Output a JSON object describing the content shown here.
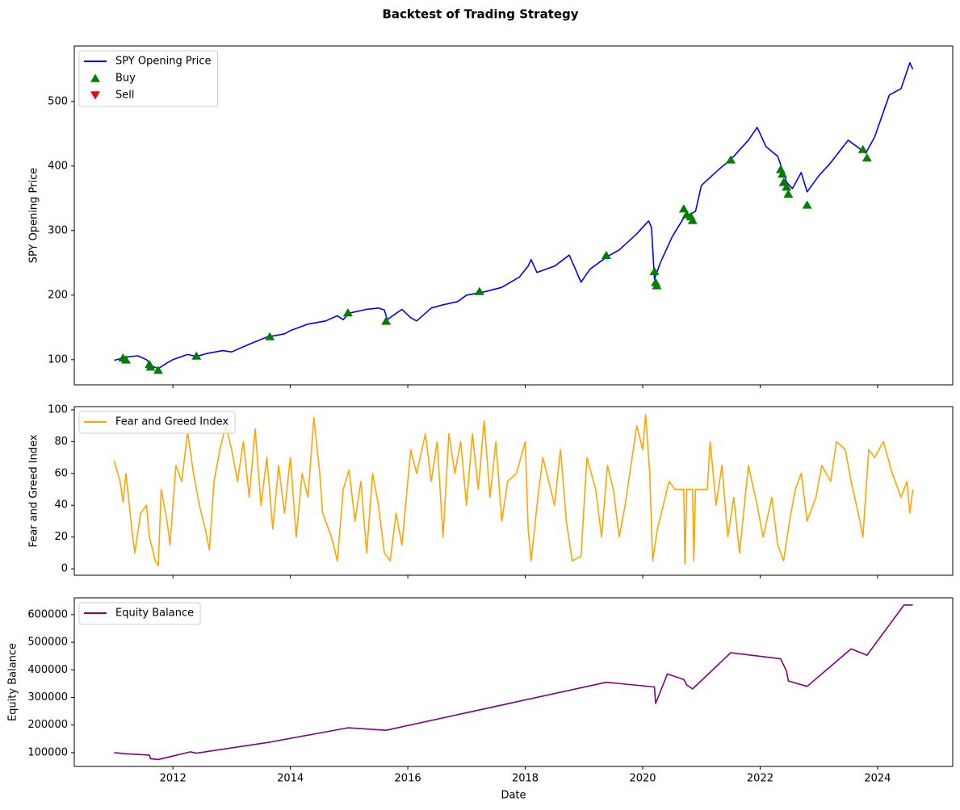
{
  "title": "Backtest of Trading Strategy",
  "chart_data": [
    {
      "type": "line",
      "ylabel": "SPY Opening Price",
      "xlim": [
        2010.32,
        2025.28
      ],
      "xticks": [
        2012,
        2014,
        2016,
        2018,
        2020,
        2022,
        2024
      ],
      "show_xticklabels": false,
      "ylim": [
        61,
        586
      ],
      "yticks": [
        100,
        200,
        300,
        400,
        500
      ],
      "legend": "upper left",
      "grid": false,
      "series": [
        {
          "name": "SPY Opening Price",
          "type": "line",
          "color": "#0000ff",
          "x": [
            2011.0,
            2011.2,
            2011.4,
            2011.55,
            2011.65,
            2011.75,
            2011.9,
            2012.0,
            2012.25,
            2012.4,
            2012.6,
            2012.85,
            2013.0,
            2013.3,
            2013.6,
            2013.9,
            2014.0,
            2014.3,
            2014.6,
            2014.8,
            2014.9,
            2015.0,
            2015.3,
            2015.5,
            2015.6,
            2015.65,
            2015.9,
            2016.05,
            2016.15,
            2016.4,
            2016.6,
            2016.85,
            2017.0,
            2017.3,
            2017.6,
            2017.9,
            2018.05,
            2018.1,
            2018.2,
            2018.5,
            2018.75,
            2018.95,
            2019.1,
            2019.4,
            2019.6,
            2019.9,
            2020.1,
            2020.15,
            2020.2,
            2020.3,
            2020.5,
            2020.7,
            2020.9,
            2021.0,
            2021.3,
            2021.5,
            2021.8,
            2021.95,
            2022.1,
            2022.3,
            2022.45,
            2022.55,
            2022.7,
            2022.8,
            2023.0,
            2023.2,
            2023.5,
            2023.8,
            2023.95,
            2024.2,
            2024.4,
            2024.55,
            2024.6
          ],
          "values": [
            99,
            104,
            106,
            100,
            90,
            86,
            95,
            100,
            108,
            105,
            110,
            114,
            112,
            124,
            135,
            140,
            145,
            155,
            160,
            168,
            162,
            172,
            178,
            180,
            177,
            162,
            178,
            165,
            160,
            180,
            185,
            190,
            200,
            205,
            212,
            228,
            245,
            255,
            235,
            245,
            262,
            220,
            240,
            260,
            270,
            295,
            315,
            305,
            225,
            250,
            290,
            320,
            330,
            370,
            395,
            410,
            440,
            460,
            430,
            415,
            375,
            365,
            390,
            360,
            385,
            405,
            440,
            420,
            445,
            510,
            520,
            560,
            550
          ]
        },
        {
          "name": "Buy",
          "type": "scatter",
          "marker": "^",
          "color": "#008000",
          "x": [
            2011.15,
            2011.2,
            2011.6,
            2011.62,
            2011.75,
            2012.4,
            2013.65,
            2014.98,
            2015.63,
            2017.22,
            2019.38,
            2020.2,
            2020.22,
            2020.24,
            2020.7,
            2020.75,
            2020.82,
            2020.85,
            2021.5,
            2022.35,
            2022.38,
            2022.4,
            2022.45,
            2022.48,
            2022.8,
            2023.75,
            2023.82
          ],
          "values": [
            103,
            100,
            93,
            89,
            84,
            106,
            136,
            173,
            160,
            206,
            262,
            237,
            220,
            215,
            334,
            325,
            322,
            316,
            410,
            395,
            388,
            375,
            368,
            357,
            340,
            426,
            413
          ]
        },
        {
          "name": "Sell",
          "type": "scatter",
          "marker": "v",
          "color": "#ff0000",
          "x": [],
          "values": []
        }
      ]
    },
    {
      "type": "line",
      "ylabel": "Fear and Greed Index",
      "xlim": [
        2010.32,
        2025.28
      ],
      "xticks": [
        2012,
        2014,
        2016,
        2018,
        2020,
        2022,
        2024
      ],
      "show_xticklabels": false,
      "ylim": [
        -4,
        102
      ],
      "yticks": [
        0,
        20,
        40,
        60,
        80,
        100
      ],
      "legend": "upper left",
      "grid": false,
      "series": [
        {
          "name": "Fear and Greed Index",
          "type": "line",
          "color": "#ffa500",
          "x": [
            2011.0,
            2011.1,
            2011.15,
            2011.2,
            2011.3,
            2011.35,
            2011.45,
            2011.55,
            2011.6,
            2011.7,
            2011.75,
            2011.8,
            2011.9,
            2011.95,
            2012.05,
            2012.15,
            2012.25,
            2012.35,
            2012.45,
            2012.55,
            2012.62,
            2012.7,
            2012.8,
            2012.9,
            2013.0,
            2013.1,
            2013.2,
            2013.3,
            2013.4,
            2013.5,
            2013.6,
            2013.7,
            2013.8,
            2013.9,
            2014.0,
            2014.1,
            2014.2,
            2014.3,
            2014.4,
            2014.5,
            2014.55,
            2014.7,
            2014.8,
            2014.9,
            2015.0,
            2015.1,
            2015.2,
            2015.3,
            2015.4,
            2015.5,
            2015.6,
            2015.7,
            2015.8,
            2015.9,
            2016.05,
            2016.15,
            2016.3,
            2016.4,
            2016.5,
            2016.6,
            2016.7,
            2016.8,
            2016.9,
            2017.0,
            2017.1,
            2017.2,
            2017.3,
            2017.4,
            2017.5,
            2017.6,
            2017.7,
            2017.85,
            2018.0,
            2018.05,
            2018.1,
            2018.2,
            2018.3,
            2018.5,
            2018.6,
            2018.7,
            2018.8,
            2018.95,
            2019.05,
            2019.2,
            2019.3,
            2019.4,
            2019.5,
            2019.6,
            2019.7,
            2019.9,
            2020.0,
            2020.05,
            2020.12,
            2020.17,
            2020.25,
            2020.35,
            2020.45,
            2020.55,
            2020.7,
            2020.72,
            2020.75,
            2020.85,
            2020.87,
            2020.9,
            2021.1,
            2021.15,
            2021.25,
            2021.35,
            2021.45,
            2021.55,
            2021.65,
            2021.8,
            2021.95,
            2022.05,
            2022.2,
            2022.3,
            2022.4,
            2022.5,
            2022.6,
            2022.7,
            2022.8,
            2022.95,
            2023.05,
            2023.2,
            2023.3,
            2023.45,
            2023.55,
            2023.7,
            2023.75,
            2023.85,
            2023.95,
            2024.1,
            2024.25,
            2024.4,
            2024.5,
            2024.55,
            2024.6
          ],
          "values": [
            68,
            55,
            42,
            60,
            25,
            10,
            35,
            40,
            20,
            5,
            2,
            50,
            30,
            15,
            65,
            55,
            86,
            60,
            40,
            25,
            12,
            55,
            75,
            90,
            75,
            55,
            80,
            45,
            88,
            40,
            70,
            25,
            65,
            35,
            70,
            20,
            60,
            45,
            95,
            60,
            35,
            20,
            5,
            50,
            62,
            30,
            55,
            10,
            60,
            40,
            10,
            5,
            35,
            15,
            75,
            60,
            85,
            55,
            80,
            20,
            85,
            60,
            80,
            40,
            85,
            50,
            93,
            45,
            80,
            30,
            55,
            60,
            80,
            25,
            5,
            40,
            70,
            40,
            75,
            30,
            5,
            8,
            70,
            50,
            20,
            65,
            50,
            20,
            40,
            90,
            75,
            97,
            60,
            5,
            25,
            40,
            55,
            50,
            50,
            3,
            50,
            50,
            5,
            50,
            50,
            80,
            40,
            65,
            20,
            45,
            10,
            65,
            40,
            20,
            45,
            15,
            5,
            30,
            50,
            60,
            30,
            45,
            65,
            55,
            80,
            75,
            55,
            30,
            20,
            75,
            70,
            80,
            60,
            45,
            55,
            35,
            50
          ]
        }
      ]
    },
    {
      "type": "line",
      "ylabel": "Equity Balance",
      "xlabel": "Date",
      "xlim": [
        2010.32,
        2025.28
      ],
      "xticks": [
        2012,
        2014,
        2016,
        2018,
        2020,
        2022,
        2024
      ],
      "show_xticklabels": true,
      "ylim": [
        50000,
        661000
      ],
      "yticks": [
        100000,
        200000,
        300000,
        400000,
        500000,
        600000
      ],
      "legend": "upper left",
      "grid": false,
      "series": [
        {
          "name": "Equity Balance",
          "type": "line",
          "color": "#800080",
          "x": [
            2011.0,
            2011.2,
            2011.6,
            2011.62,
            2011.75,
            2012.3,
            2012.4,
            2013.65,
            2014.98,
            2015.63,
            2019.38,
            2020.2,
            2020.22,
            2020.42,
            2020.7,
            2020.75,
            2020.85,
            2021.5,
            2022.35,
            2022.45,
            2022.48,
            2022.8,
            2023.55,
            2023.82,
            2024.45,
            2024.6
          ],
          "values": [
            100000,
            96000,
            91000,
            78000,
            75000,
            103000,
            98000,
            138000,
            190000,
            181000,
            355000,
            338000,
            278000,
            385000,
            365000,
            345000,
            331000,
            462000,
            440000,
            395000,
            360000,
            340000,
            476000,
            453000,
            635000,
            635000
          ]
        }
      ]
    }
  ]
}
